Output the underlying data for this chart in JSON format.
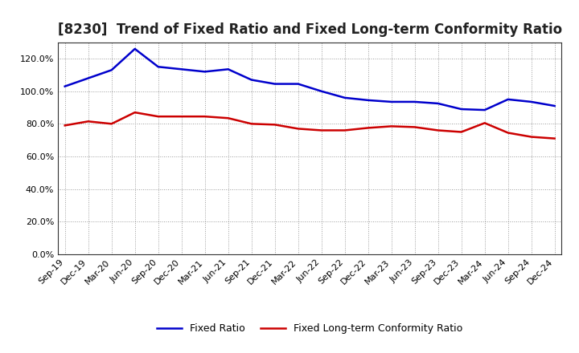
{
  "title": "[8230]  Trend of Fixed Ratio and Fixed Long-term Conformity Ratio",
  "x_labels": [
    "Sep-19",
    "Dec-19",
    "Mar-20",
    "Jun-20",
    "Sep-20",
    "Dec-20",
    "Mar-21",
    "Jun-21",
    "Sep-21",
    "Dec-21",
    "Mar-22",
    "Jun-22",
    "Sep-22",
    "Dec-22",
    "Mar-23",
    "Jun-23",
    "Sep-23",
    "Dec-23",
    "Mar-24",
    "Jun-24",
    "Sep-24",
    "Dec-24"
  ],
  "fixed_ratio": [
    103.0,
    108.0,
    113.0,
    126.0,
    115.0,
    113.5,
    112.0,
    113.5,
    107.0,
    104.5,
    104.5,
    100.0,
    96.0,
    94.5,
    93.5,
    93.5,
    92.5,
    89.0,
    88.5,
    95.0,
    93.5,
    91.0
  ],
  "fixed_lt_ratio": [
    79.0,
    81.5,
    80.0,
    87.0,
    84.5,
    84.5,
    84.5,
    83.5,
    80.0,
    79.5,
    77.0,
    76.0,
    76.0,
    77.5,
    78.5,
    78.0,
    76.0,
    75.0,
    80.5,
    74.5,
    72.0,
    71.0
  ],
  "fixed_ratio_color": "#0000cc",
  "fixed_lt_ratio_color": "#cc0000",
  "ylim": [
    0,
    130
  ],
  "yticks": [
    0,
    20,
    40,
    60,
    80,
    100,
    120
  ],
  "background_color": "#ffffff",
  "grid_color": "#999999",
  "legend_fixed": "Fixed Ratio",
  "legend_fixed_lt": "Fixed Long-term Conformity Ratio",
  "title_fontsize": 12,
  "legend_fontsize": 9,
  "tick_fontsize": 8
}
